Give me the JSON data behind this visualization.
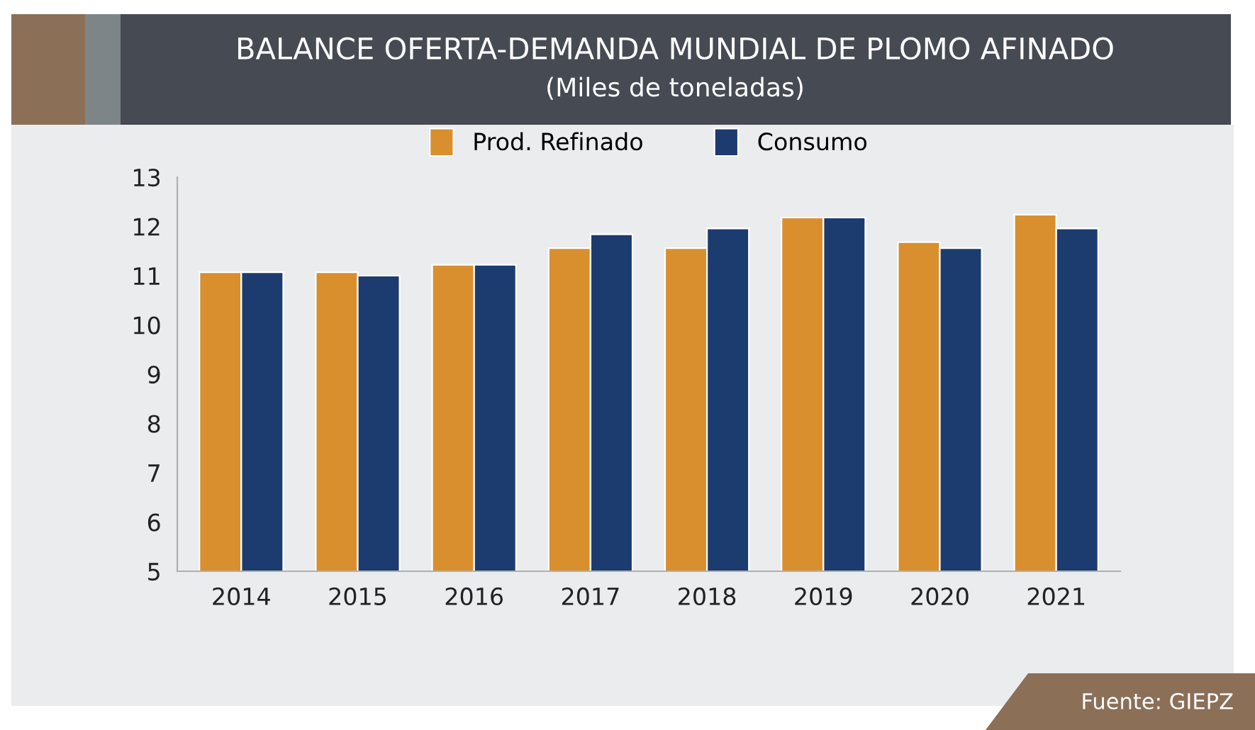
{
  "chart_data": {
    "type": "bar",
    "title": "BALANCE OFERTA-DEMANDA MUNDIAL DE PLOMO AFINADO",
    "subtitle": "(Miles de toneladas)",
    "categories": [
      "2014",
      "2015",
      "2016",
      "2017",
      "2018",
      "2019",
      "2020",
      "2021"
    ],
    "series": [
      {
        "name": "Prod. Refinado",
        "color": "#d98f2e",
        "values": [
          11.07,
          11.07,
          11.22,
          11.56,
          11.56,
          12.18,
          11.68,
          12.24
        ]
      },
      {
        "name": "Consumo",
        "color": "#1c3b6e",
        "values": [
          11.07,
          11.0,
          11.22,
          11.84,
          11.96,
          12.18,
          11.56,
          11.96
        ]
      }
    ],
    "ylim": [
      5,
      13
    ],
    "yticks": [
      5,
      6,
      7,
      8,
      9,
      10,
      11,
      12,
      13
    ],
    "grid": false,
    "legend": "top",
    "annotations": [
      "Fuente: GIEPZ"
    ]
  }
}
